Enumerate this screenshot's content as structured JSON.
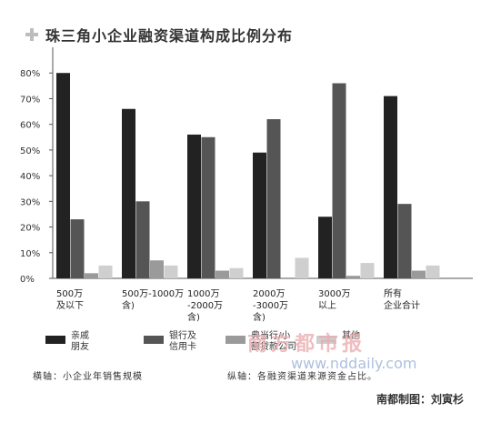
{
  "header": {
    "title": "珠三角小企业融资渠道构成比例分布"
  },
  "chart_data": {
    "type": "bar",
    "title": "珠三角小企业融资渠道构成比例分布",
    "categories": [
      [
        "500万",
        "及以下"
      ],
      [
        "500万-1000万",
        "含)"
      ],
      [
        "1000万",
        "-2000万",
        "含)"
      ],
      [
        "2000万",
        "-3000万",
        "含)"
      ],
      [
        "3000万",
        "以上"
      ],
      [
        "所有",
        "企业合计"
      ]
    ],
    "series": [
      {
        "name": "亲戚\n朋友",
        "color": "#222222",
        "values": [
          80,
          66,
          56,
          49,
          24,
          71
        ]
      },
      {
        "name": "银行及\n信用卡",
        "color": "#555555",
        "values": [
          23,
          30,
          55,
          62,
          76,
          29
        ]
      },
      {
        "name": "典当行/小\n额贷款公司",
        "color": "#9a9a9a",
        "values": [
          2,
          7,
          3,
          0,
          1,
          3
        ]
      },
      {
        "name": "其他",
        "color": "#cfcfcf",
        "values": [
          5,
          5,
          4,
          8,
          6,
          5
        ]
      }
    ],
    "yticks": [
      "0%",
      "10%",
      "20%",
      "30%",
      "40%",
      "50%",
      "60%",
      "70%",
      "80%"
    ],
    "ylim": [
      0,
      90
    ],
    "grid": false,
    "legend": "bottom"
  },
  "notes": {
    "x_axis_note": "横轴：小企业年销售规模",
    "y_axis_note": "纵轴：各融资渠道来源资金占比。"
  },
  "credit": "南都制图：刘寅杉",
  "watermark": {
    "text": "南方都市报",
    "url": "www.nddaily.com"
  }
}
